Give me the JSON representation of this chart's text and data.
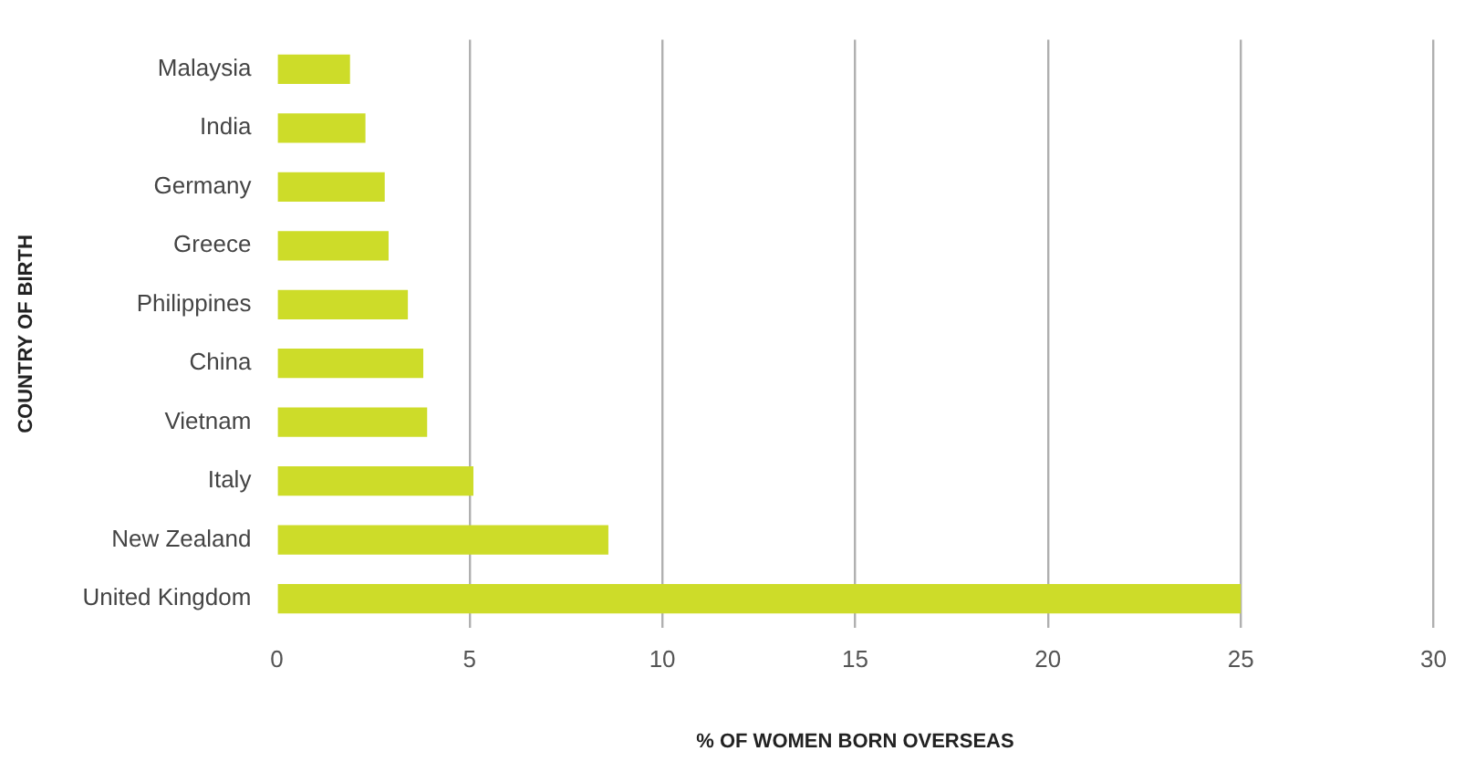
{
  "chart_data": {
    "type": "bar",
    "orientation": "horizontal",
    "xlabel": "% OF WOMEN BORN OVERSEAS",
    "ylabel": "COUNTRY OF BIRTH",
    "categories": [
      "Malaysia",
      "India",
      "Germany",
      "Greece",
      "Philippines",
      "China",
      "Vietnam",
      "Italy",
      "New Zealand",
      "United Kingdom"
    ],
    "values": [
      1.9,
      2.3,
      2.8,
      2.9,
      3.4,
      3.8,
      3.9,
      5.1,
      8.6,
      25.0
    ],
    "color": "#cddc29",
    "xlim": [
      0,
      30
    ],
    "xticks": [
      0,
      5,
      10,
      15,
      20,
      25,
      30
    ],
    "grid": "x"
  }
}
